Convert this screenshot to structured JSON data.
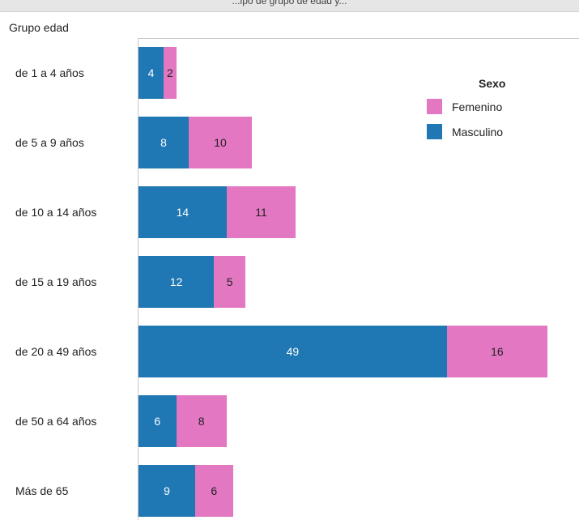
{
  "chart_data": {
    "type": "bar",
    "orientation": "horizontal",
    "stacked": true,
    "title_fragment": "...ipo de grupo de edad y...",
    "ylabel": "Grupo edad",
    "categories": [
      "de 1 a 4 años",
      "de 5 a 9 años",
      "de 10 a 14 años",
      "de 15 a 19 años",
      "de 20 a 49 años",
      "de 50 a 64 años",
      "Más de 65"
    ],
    "series": [
      {
        "name": "Masculino",
        "color": "#1f77b4",
        "label_color": "#ffffff",
        "values": [
          4,
          8,
          14,
          12,
          49,
          6,
          9
        ]
      },
      {
        "name": "Femenino",
        "color": "#e377c2",
        "label_color": "#222222",
        "values": [
          2,
          10,
          11,
          5,
          16,
          8,
          6
        ]
      }
    ],
    "xlim": [
      0,
      70
    ],
    "legend": {
      "title": "Sexo",
      "position": "top-right",
      "order": [
        "Femenino",
        "Masculino"
      ]
    },
    "grid": false
  }
}
